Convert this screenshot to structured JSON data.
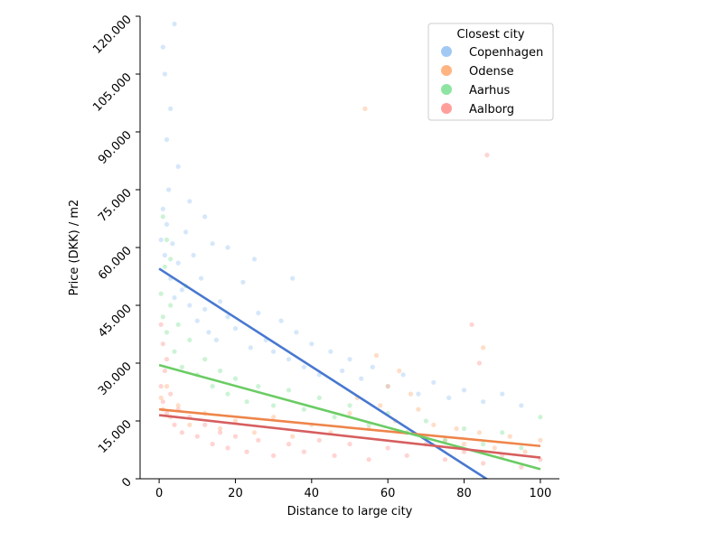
{
  "chart_data": {
    "type": "scatter",
    "xlabel": "Distance to large city",
    "ylabel": "Price (DKK) / m2",
    "xlim": [
      -5,
      105
    ],
    "ylim": [
      0,
      120000
    ],
    "x_ticks": [
      0,
      20,
      40,
      60,
      80,
      100
    ],
    "x_tick_labels": [
      "0",
      "20",
      "40",
      "60",
      "80",
      "100"
    ],
    "y_ticks": [
      0,
      15000,
      30000,
      45000,
      60000,
      75000,
      90000,
      105000,
      120000
    ],
    "y_tick_labels": [
      "0",
      "15.000",
      "30.000",
      "45.000",
      "60.000",
      "75.000",
      "90.000",
      "105.000",
      "120.000"
    ],
    "legend": {
      "title": "Closest city",
      "placement": "top-right"
    },
    "grid": false,
    "series": [
      {
        "name": "Copenhagen",
        "point_color": "#a1c9f4",
        "line_color": "#4878d0",
        "regression": {
          "x": [
            0,
            100
          ],
          "y": [
            54500,
            -9000
          ]
        },
        "points": [
          [
            0.5,
            62000
          ],
          [
            1,
            70000
          ],
          [
            1.5,
            58000
          ],
          [
            2,
            66000
          ],
          [
            2.5,
            75000
          ],
          [
            3,
            52000
          ],
          [
            3.5,
            61000
          ],
          [
            4,
            47000
          ],
          [
            5,
            56000
          ],
          [
            6,
            49000
          ],
          [
            7,
            64000
          ],
          [
            8,
            45000
          ],
          [
            9,
            58000
          ],
          [
            10,
            41000
          ],
          [
            11,
            52000
          ],
          [
            12,
            44000
          ],
          [
            13,
            38000
          ],
          [
            14,
            61000
          ],
          [
            15,
            36000
          ],
          [
            16,
            46000
          ],
          [
            18,
            42000
          ],
          [
            20,
            39000
          ],
          [
            22,
            51000
          ],
          [
            24,
            34000
          ],
          [
            26,
            43000
          ],
          [
            28,
            36000
          ],
          [
            30,
            33000
          ],
          [
            32,
            41000
          ],
          [
            34,
            31000
          ],
          [
            36,
            38000
          ],
          [
            38,
            29000
          ],
          [
            40,
            35000
          ],
          [
            42,
            27000
          ],
          [
            45,
            33000
          ],
          [
            48,
            28000
          ],
          [
            50,
            31000
          ],
          [
            53,
            26000
          ],
          [
            56,
            29000
          ],
          [
            60,
            24000
          ],
          [
            64,
            27000
          ],
          [
            68,
            22000
          ],
          [
            72,
            25000
          ],
          [
            76,
            21000
          ],
          [
            80,
            23000
          ],
          [
            85,
            20000
          ],
          [
            90,
            22000
          ],
          [
            95,
            19000
          ],
          [
            2,
            88000
          ],
          [
            3,
            96000
          ],
          [
            1.5,
            105000
          ],
          [
            5,
            81000
          ],
          [
            8,
            72000
          ],
          [
            12,
            68000
          ],
          [
            18,
            60000
          ],
          [
            25,
            57000
          ],
          [
            35,
            52000
          ],
          [
            1,
            112000
          ],
          [
            4,
            118000
          ]
        ]
      },
      {
        "name": "Odense",
        "point_color": "#ffb482",
        "line_color": "#ee854a",
        "regression": {
          "x": [
            0,
            100
          ],
          "y": [
            18000,
            8500
          ]
        },
        "points": [
          [
            0.5,
            21000
          ],
          [
            1,
            18000
          ],
          [
            2,
            24000
          ],
          [
            3,
            16000
          ],
          [
            5,
            19000
          ],
          [
            8,
            14000
          ],
          [
            12,
            17000
          ],
          [
            16,
            13000
          ],
          [
            20,
            15000
          ],
          [
            25,
            12000
          ],
          [
            30,
            16000
          ],
          [
            35,
            11000
          ],
          [
            40,
            14000
          ],
          [
            45,
            12000
          ],
          [
            50,
            17000
          ],
          [
            52,
            21000
          ],
          [
            55,
            13000
          ],
          [
            58,
            19000
          ],
          [
            60,
            24000
          ],
          [
            62,
            15000
          ],
          [
            65,
            12000
          ],
          [
            68,
            18000
          ],
          [
            70,
            11000
          ],
          [
            72,
            14000
          ],
          [
            75,
            10000
          ],
          [
            78,
            13000
          ],
          [
            80,
            9000
          ],
          [
            84,
            12000
          ],
          [
            88,
            8000
          ],
          [
            92,
            11000
          ],
          [
            96,
            7000
          ],
          [
            100,
            10000
          ],
          [
            57,
            32000
          ],
          [
            63,
            28000
          ],
          [
            54,
            96000
          ],
          [
            66,
            22000
          ],
          [
            85,
            34000
          ]
        ]
      },
      {
        "name": "Aarhus",
        "point_color": "#8de5a1",
        "line_color": "#6acc64",
        "regression": {
          "x": [
            0,
            100
          ],
          "y": [
            29500,
            2500
          ]
        },
        "points": [
          [
            0.5,
            48000
          ],
          [
            1,
            42000
          ],
          [
            1.5,
            55000
          ],
          [
            2,
            38000
          ],
          [
            3,
            45000
          ],
          [
            4,
            33000
          ],
          [
            5,
            40000
          ],
          [
            6,
            29000
          ],
          [
            8,
            36000
          ],
          [
            10,
            27000
          ],
          [
            12,
            31000
          ],
          [
            14,
            24000
          ],
          [
            16,
            28000
          ],
          [
            18,
            22000
          ],
          [
            20,
            26000
          ],
          [
            23,
            20000
          ],
          [
            26,
            24000
          ],
          [
            30,
            19000
          ],
          [
            34,
            23000
          ],
          [
            38,
            18000
          ],
          [
            42,
            21000
          ],
          [
            46,
            16000
          ],
          [
            50,
            19000
          ],
          [
            55,
            14000
          ],
          [
            60,
            17000
          ],
          [
            65,
            12000
          ],
          [
            70,
            15000
          ],
          [
            75,
            10000
          ],
          [
            80,
            13000
          ],
          [
            85,
            9000
          ],
          [
            90,
            12000
          ],
          [
            95,
            8000
          ],
          [
            100,
            16000
          ],
          [
            2,
            62000
          ],
          [
            3,
            57000
          ],
          [
            1,
            68000
          ],
          [
            7,
            50000
          ]
        ]
      },
      {
        "name": "Aalborg",
        "point_color": "#ff9f9b",
        "line_color": "#d65f5f",
        "regression": {
          "x": [
            0,
            100
          ],
          "y": [
            16500,
            5500
          ]
        },
        "points": [
          [
            0.5,
            24000
          ],
          [
            1,
            20000
          ],
          [
            1.5,
            28000
          ],
          [
            2,
            17000
          ],
          [
            3,
            22000
          ],
          [
            4,
            14000
          ],
          [
            5,
            18000
          ],
          [
            6,
            12000
          ],
          [
            8,
            16000
          ],
          [
            10,
            11000
          ],
          [
            12,
            14000
          ],
          [
            14,
            9000
          ],
          [
            16,
            12000
          ],
          [
            18,
            8000
          ],
          [
            20,
            11000
          ],
          [
            23,
            7000
          ],
          [
            26,
            10000
          ],
          [
            30,
            6000
          ],
          [
            34,
            9000
          ],
          [
            38,
            7000
          ],
          [
            42,
            10000
          ],
          [
            46,
            6000
          ],
          [
            50,
            9000
          ],
          [
            55,
            5000
          ],
          [
            60,
            8000
          ],
          [
            65,
            6000
          ],
          [
            70,
            9000
          ],
          [
            75,
            5000
          ],
          [
            80,
            7000
          ],
          [
            85,
            4000
          ],
          [
            90,
            6000
          ],
          [
            95,
            3000
          ],
          [
            100,
            5000
          ],
          [
            1,
            35000
          ],
          [
            2,
            31000
          ],
          [
            0.5,
            40000
          ],
          [
            84,
            30000
          ],
          [
            86,
            84000
          ],
          [
            82,
            40000
          ]
        ]
      }
    ]
  }
}
